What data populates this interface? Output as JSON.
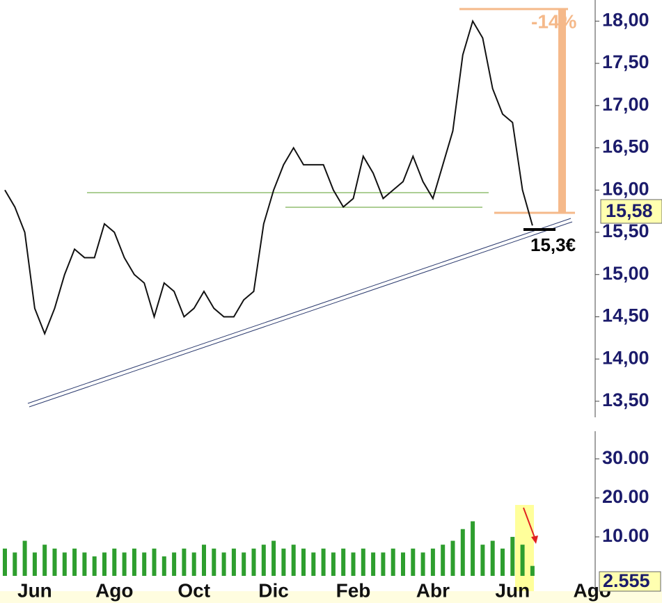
{
  "chart_data": [
    {
      "type": "line",
      "panel": "price",
      "color": "#111111",
      "categories": [
        null,
        null,
        null,
        "Jun",
        null,
        null,
        null,
        null,
        null,
        null,
        null,
        "Ago",
        null,
        null,
        null,
        null,
        null,
        null,
        null,
        "Oct",
        null,
        null,
        null,
        null,
        null,
        null,
        null,
        "Dic",
        null,
        null,
        null,
        null,
        null,
        null,
        null,
        "Feb",
        null,
        null,
        null,
        null,
        null,
        null,
        null,
        "Abr",
        null,
        null,
        null,
        null,
        null,
        null,
        null,
        "Jun",
        null,
        null,
        null,
        null,
        null,
        null,
        null,
        "Ago"
      ],
      "values": [
        16.0,
        15.8,
        15.5,
        14.6,
        14.3,
        14.6,
        15.0,
        15.3,
        15.2,
        15.2,
        15.6,
        15.5,
        15.2,
        15.0,
        14.9,
        14.5,
        14.9,
        14.8,
        14.5,
        14.6,
        14.8,
        14.6,
        14.5,
        14.5,
        14.7,
        14.8,
        15.6,
        16.0,
        16.3,
        16.5,
        16.3,
        16.3,
        16.3,
        16.0,
        15.8,
        15.9,
        16.4,
        16.2,
        15.9,
        16.0,
        16.1,
        16.4,
        16.1,
        15.9,
        16.3,
        16.7,
        17.6,
        18.0,
        17.8,
        17.2,
        16.9,
        16.8,
        16.0,
        15.58,
        null,
        null,
        null,
        null,
        null,
        null
      ],
      "ylim": [
        13.31,
        18.25
      ],
      "yticks": [
        {
          "value": 13.5,
          "label": "13,50"
        },
        {
          "value": 14,
          "label": "14,00"
        },
        {
          "value": 14.5,
          "label": "14,50"
        },
        {
          "value": 15,
          "label": "15,00"
        },
        {
          "value": 15.5,
          "label": "15,50"
        },
        {
          "value": 16,
          "label": "16,00"
        },
        {
          "value": 16.5,
          "label": "16,50"
        },
        {
          "value": 17,
          "label": "17,00"
        },
        {
          "value": 17.5,
          "label": "17,50"
        },
        {
          "value": 18,
          "label": "18,00"
        }
      ],
      "last_label": "15,58",
      "annotations": [
        "-14%",
        "15,3€"
      ]
    },
    {
      "type": "bar",
      "panel": "volume",
      "color": "#2e9e2e",
      "values": [
        7,
        6,
        9,
        6,
        8,
        7,
        6,
        7,
        6,
        5,
        6,
        7,
        6,
        7,
        6,
        7,
        5,
        6,
        7,
        6,
        8,
        7,
        6,
        7,
        6,
        7,
        8,
        9,
        7,
        8,
        7,
        6,
        7,
        6,
        7,
        6,
        7,
        6,
        6,
        7,
        6,
        7,
        6,
        7,
        8,
        9,
        12,
        14,
        8,
        9,
        7,
        10,
        8,
        2.555,
        null,
        null,
        null,
        null,
        null,
        null
      ],
      "value_labels": [
        null,
        null,
        null,
        null,
        null,
        null,
        null,
        null,
        null,
        null,
        null,
        null,
        null,
        null,
        null,
        null,
        null,
        null,
        null,
        null,
        null,
        null,
        null,
        null,
        null,
        null,
        null,
        null,
        null,
        null,
        null,
        null,
        null,
        null,
        null,
        null,
        null,
        null,
        null,
        null,
        null,
        null,
        null,
        null,
        null,
        null,
        null,
        null,
        null,
        null,
        null,
        null,
        null,
        "2.555",
        null,
        null,
        null,
        null,
        null,
        null
      ],
      "ylim": [
        0,
        37.1
      ],
      "yticks": [
        {
          "value": 10,
          "label": "10.00"
        },
        {
          "value": 20,
          "label": "20.00"
        },
        {
          "value": 30,
          "label": "30.00"
        }
      ]
    }
  ]
}
